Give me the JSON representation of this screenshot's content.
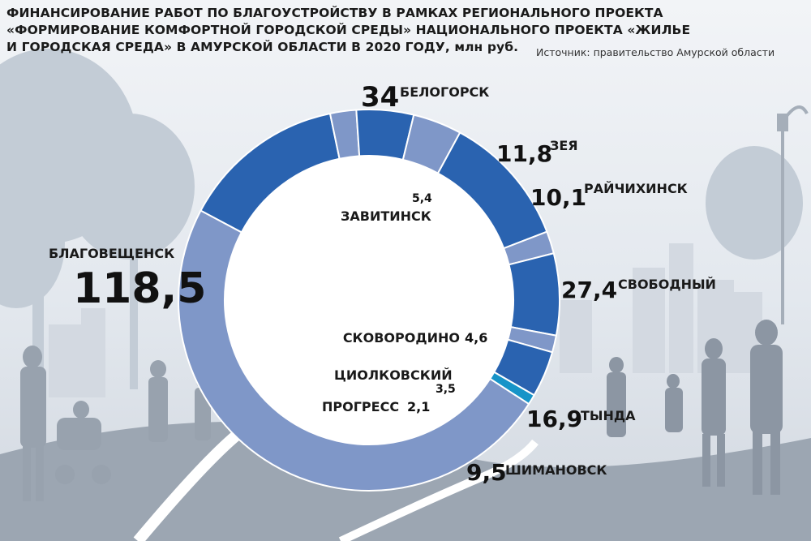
{
  "header": {
    "title_lines": [
      "ФИНАНСИРОВАНИЕ РАБОТ ПО БЛАГОУСТРОЙСТВУ В РАМКАХ РЕГИОНАЛЬНОГО ПРОЕКТА",
      "«ФОРМИРОВАНИЕ КОМФОРТНОЙ ГОРОДСКОЙ СРЕДЫ» НАЦИОНАЛЬНОГО ПРОЕКТА «ЖИЛЬЕ",
      "И ГОРОДСКАЯ СРЕДА» В АМУРСКОЙ ОБЛАСТИ В 2020 ГОДУ, млн руб."
    ],
    "source": "Источник: правительство Амурской области"
  },
  "colors": {
    "dark_blue": "#2a63b0",
    "light_blue": "#7f97c8",
    "cyan": "#1794c8",
    "separator": "#ffffff"
  },
  "chart_data": {
    "type": "pie",
    "variant": "donut",
    "title": "ФИНАНСИРОВАНИЕ РАБОТ ПО БЛАГОУСТРОЙСТВУ В РАМКАХ РЕГИОНАЛЬНОГО ПРОЕКТА «ФОРМИРОВАНИЕ КОМФОРТНОЙ ГОРОДСКОЙ СРЕДЫ» НАЦИОНАЛЬНОГО ПРОЕКТА «ЖИЛЬЕ И ГОРОДСКАЯ СРЕДА» В АМУРСКОЙ ОБЛАСТИ В 2020 ГОДУ, млн руб.",
    "unit": "млн руб.",
    "slices": [
      {
        "name": "БЕЛОГОРСК",
        "value": 34,
        "value_label": "34",
        "color": "#2a63b0"
      },
      {
        "name": "ЗАВИТИНСК",
        "value": 5.4,
        "value_label": "5,4",
        "color": "#7f97c8"
      },
      {
        "name": "ЗЕЯ",
        "value": 11.8,
        "value_label": "11,8",
        "color": "#2a63b0"
      },
      {
        "name": "РАЙЧИХИНСК",
        "value": 10.1,
        "value_label": "10,1",
        "color": "#7f97c8"
      },
      {
        "name": "СВОБОДНЫЙ",
        "value": 27.4,
        "value_label": "27,4",
        "color": "#2a63b0"
      },
      {
        "name": "СКОВОРОДИНО",
        "value": 4.6,
        "value_label": "4,6",
        "color": "#7f97c8"
      },
      {
        "name": "ТЫНДА",
        "value": 16.9,
        "value_label": "16,9",
        "color": "#2a63b0"
      },
      {
        "name": "ЦИОЛКОВСКИЙ",
        "value": 3.5,
        "value_label": "3,5",
        "color": "#7f97c8"
      },
      {
        "name": "ШИМАНОВСК",
        "value": 9.5,
        "value_label": "9,5",
        "color": "#2a63b0"
      },
      {
        "name": "ПРОГРЕСС",
        "value": 2.1,
        "value_label": "2,1",
        "color": "#1794c8"
      },
      {
        "name": "БЛАГОВЕЩЕНСК",
        "value": 118.5,
        "value_label": "118,5",
        "color": "#7f97c8"
      }
    ]
  }
}
